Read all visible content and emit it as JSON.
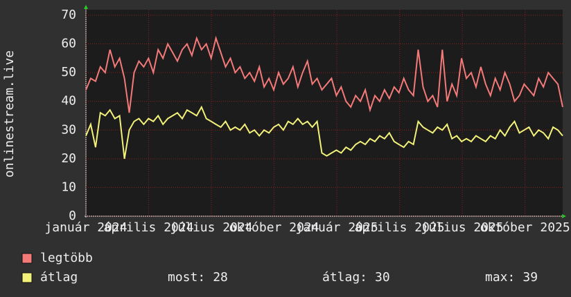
{
  "chart_data": {
    "type": "line",
    "y_label": "onlinestream.live",
    "xlim": [
      0,
      22.8
    ],
    "xticks": [
      {
        "value": 0,
        "label": "január 2024"
      },
      {
        "value": 3,
        "label": "április 2024"
      },
      {
        "value": 6,
        "label": "július 2024"
      },
      {
        "value": 9,
        "label": "október 2024"
      },
      {
        "value": 12,
        "label": "január 2025"
      },
      {
        "value": 15,
        "label": "április 2025"
      },
      {
        "value": 18,
        "label": "július 2025"
      },
      {
        "value": 21,
        "label": "október 2025"
      }
    ],
    "ylim": [
      0,
      70
    ],
    "yticks": [
      0,
      10,
      20,
      30,
      40,
      50,
      60,
      70
    ],
    "grid": true,
    "series": [
      {
        "name": "legtöbb",
        "color": "#f47a7a",
        "values": [
          44,
          48,
          47,
          52,
          50,
          58,
          52,
          55,
          48,
          36,
          50,
          54,
          52,
          55,
          50,
          58,
          55,
          60,
          57,
          54,
          58,
          60,
          56,
          62,
          58,
          60,
          55,
          62,
          57,
          52,
          55,
          50,
          52,
          48,
          50,
          47,
          52,
          45,
          48,
          44,
          50,
          46,
          48,
          52,
          45,
          50,
          54,
          46,
          48,
          44,
          46,
          48,
          42,
          45,
          40,
          38,
          42,
          40,
          44,
          37,
          42,
          40,
          44,
          41,
          45,
          43,
          48,
          44,
          42,
          58,
          45,
          40,
          42,
          38,
          58,
          40,
          46,
          42,
          55,
          48,
          50,
          45,
          52,
          46,
          42,
          48,
          44,
          50,
          46,
          40,
          42,
          46,
          44,
          42,
          48,
          45,
          50,
          48,
          46,
          38
        ]
      },
      {
        "name": "átlag",
        "color": "#f2f27a",
        "values": [
          28,
          32,
          24,
          36,
          35,
          37,
          34,
          35,
          20,
          30,
          33,
          34,
          32,
          34,
          33,
          35,
          32,
          34,
          35,
          36,
          34,
          37,
          36,
          35,
          38,
          34,
          33,
          32,
          31,
          33,
          30,
          31,
          30,
          32,
          29,
          30,
          28,
          30,
          29,
          31,
          32,
          30,
          33,
          32,
          34,
          32,
          33,
          31,
          33,
          22,
          21,
          22,
          23,
          22,
          24,
          23,
          25,
          26,
          25,
          27,
          26,
          28,
          27,
          29,
          26,
          25,
          24,
          26,
          25,
          33,
          31,
          30,
          29,
          31,
          30,
          32,
          27,
          28,
          26,
          27,
          26,
          28,
          27,
          26,
          28,
          27,
          30,
          28,
          31,
          33,
          29,
          30,
          31,
          28,
          30,
          29,
          27,
          31,
          30,
          28
        ],
        "stats": [
          {
            "label": "most:",
            "value": 28
          },
          {
            "label": "átlag:",
            "value": 30
          },
          {
            "label": "max:",
            "value": 39
          }
        ]
      }
    ]
  }
}
